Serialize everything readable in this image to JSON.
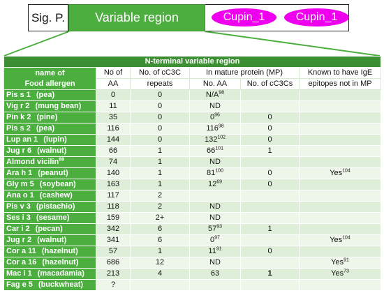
{
  "domain_bar": {
    "signal_peptide": "Sig. P.",
    "variable_region": "Variable region",
    "cupin_1": "Cupin_1",
    "cupin_2": "Cupin_1"
  },
  "table": {
    "title": "N-terminal variable region",
    "headers": {
      "name_line1": "name of",
      "name_line2": "Food allergen",
      "aa_line1": "No of",
      "aa_line2": "AA",
      "repeats_line1": "No. of cC3C",
      "repeats_line2": "repeats",
      "mature_group": "In mature protein (MP)",
      "mp_aa": "No. AA",
      "mp_cc3cs": "No. of cC3Cs",
      "ige_line1": "Known to have IgE",
      "ige_line2": "epitopes not in MP"
    },
    "rows": [
      {
        "name": "Pis s 1",
        "source": "(pea)",
        "name_ref": "",
        "aa": "0",
        "repeats": "0",
        "mp_aa": "N/A",
        "mp_aa_ref": "98",
        "mp_cc3cs": "",
        "ige": "",
        "ige_ref": ""
      },
      {
        "name": "Vig r 2",
        "source": "(mung bean)",
        "name_ref": "",
        "aa": "11",
        "repeats": "0",
        "mp_aa": "ND",
        "mp_aa_ref": "",
        "mp_cc3cs": "",
        "ige": "",
        "ige_ref": ""
      },
      {
        "name": "Pin k 2",
        "source": "(pine)",
        "name_ref": "",
        "aa": "35",
        "repeats": "0",
        "mp_aa": "0",
        "mp_aa_ref": "96",
        "mp_cc3cs": "0",
        "ige": "",
        "ige_ref": ""
      },
      {
        "name": "Pis s 2",
        "source": "(pea)",
        "name_ref": "",
        "aa": "116",
        "repeats": "0",
        "mp_aa": "116",
        "mp_aa_ref": "98",
        "mp_cc3cs": "0",
        "ige": "",
        "ige_ref": ""
      },
      {
        "name": "Lup an 1",
        "source": "(lupin)",
        "name_ref": "",
        "aa": "144",
        "repeats": "0",
        "mp_aa": "132",
        "mp_aa_ref": "102",
        "mp_cc3cs": "0",
        "ige": "",
        "ige_ref": ""
      },
      {
        "name": "Jug r 6",
        "source": "(walnut)",
        "name_ref": "",
        "aa": "66",
        "repeats": "1",
        "mp_aa": "66",
        "mp_aa_ref": "101",
        "mp_cc3cs": "1",
        "ige": "",
        "ige_ref": ""
      },
      {
        "name": "Almond vicilin",
        "source": "",
        "name_ref": "89",
        "aa": "74",
        "repeats": "1",
        "mp_aa": "ND",
        "mp_aa_ref": "",
        "mp_cc3cs": "",
        "ige": "",
        "ige_ref": ""
      },
      {
        "name": "Ara h 1",
        "source": "(peanut)",
        "name_ref": "",
        "aa": "140",
        "repeats": "1",
        "mp_aa": "81",
        "mp_aa_ref": "100",
        "mp_cc3cs": "0",
        "ige": "Yes",
        "ige_ref": "104"
      },
      {
        "name": "Gly m 5",
        "source": "(soybean)",
        "name_ref": "",
        "aa": "163",
        "repeats": "1",
        "mp_aa": "12",
        "mp_aa_ref": "69",
        "mp_cc3cs": "0",
        "ige": "",
        "ige_ref": ""
      },
      {
        "name": "Ana o 1",
        "source": "(cashew)",
        "name_ref": "",
        "aa": "117",
        "repeats": "2",
        "mp_aa": "",
        "mp_aa_ref": "",
        "mp_cc3cs": "",
        "ige": "",
        "ige_ref": ""
      },
      {
        "name": "Pis v 3",
        "source": "(pistachio)",
        "name_ref": "",
        "aa": "118",
        "repeats": "2",
        "mp_aa": "ND",
        "mp_aa_ref": "",
        "mp_cc3cs": "",
        "ige": "",
        "ige_ref": ""
      },
      {
        "name": "Ses i 3",
        "source": "(sesame)",
        "name_ref": "",
        "aa": "159",
        "repeats": "2+",
        "mp_aa": "ND",
        "mp_aa_ref": "",
        "mp_cc3cs": "",
        "ige": "",
        "ige_ref": ""
      },
      {
        "name": "Car i 2",
        "source": "(pecan)",
        "name_ref": "",
        "aa": "342",
        "repeats": "6",
        "mp_aa": "57",
        "mp_aa_ref": "93",
        "mp_cc3cs": "1",
        "ige": "",
        "ige_ref": ""
      },
      {
        "name": "Jug r 2",
        "source": "(walnut)",
        "name_ref": "",
        "aa": "341",
        "repeats": "6",
        "mp_aa": "0",
        "mp_aa_ref": "97",
        "mp_cc3cs": "",
        "ige": "Yes",
        "ige_ref": "104"
      },
      {
        "name": "Cor a 11",
        "source": "(hazelnut)",
        "name_ref": "",
        "aa": "57",
        "repeats": "1",
        "mp_aa": "11",
        "mp_aa_ref": "91",
        "mp_cc3cs": "0",
        "ige": "",
        "ige_ref": ""
      },
      {
        "name": "Cor a 16",
        "source": "(hazelnut)",
        "name_ref": "",
        "aa": "686",
        "repeats": "12",
        "mp_aa": "ND",
        "mp_aa_ref": "",
        "mp_cc3cs": "",
        "ige": "Yes",
        "ige_ref": "91"
      },
      {
        "name": "Mac i 1",
        "source": "(macadamia)",
        "name_ref": "",
        "aa": "213",
        "repeats": "4",
        "mp_aa": "63",
        "mp_aa_ref": "",
        "mp_cc3cs": "1",
        "ige": "Yes",
        "ige_ref": "73"
      },
      {
        "name": "Fag e 5",
        "source": "(buckwheat)",
        "name_ref": "",
        "aa": "?",
        "repeats": "",
        "mp_aa": "",
        "mp_aa_ref": "",
        "mp_cc3cs": "",
        "ige": "",
        "ige_ref": ""
      }
    ]
  },
  "colors": {
    "green": "#4cae3f",
    "dark_green": "#3d8f33",
    "row_light": "#dfeed8",
    "row_lighter": "#eef6ea",
    "magenta": "#ee00ee"
  }
}
